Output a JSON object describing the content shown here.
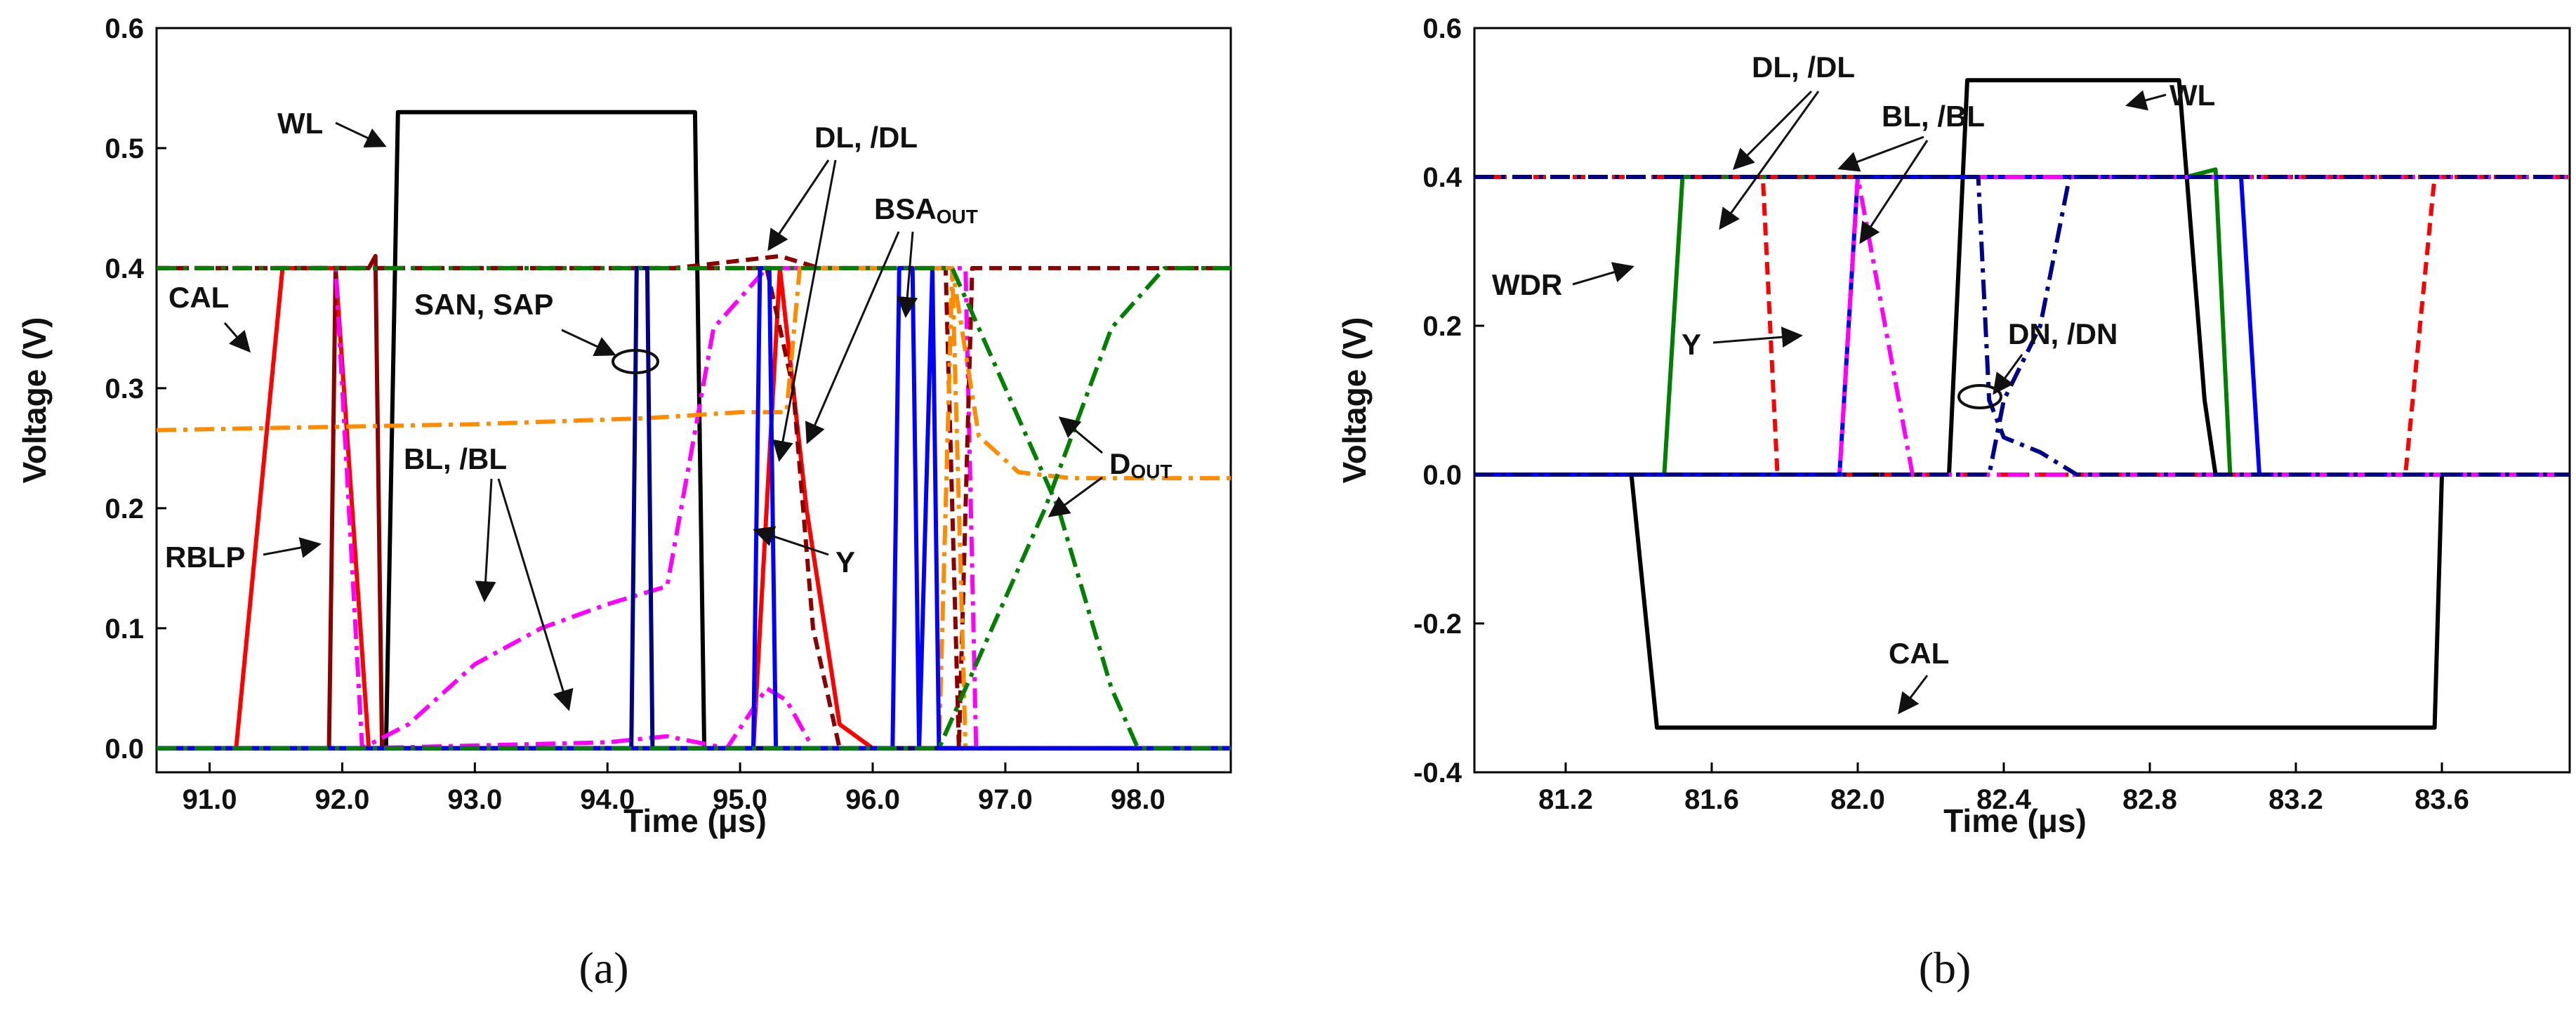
{
  "chart_data": [
    {
      "type": "line",
      "panel_label": "(a)",
      "xlabel": "Time (μs)",
      "ylabel": "Voltage (V)",
      "xlim": [
        90.6,
        98.7
      ],
      "ylim": [
        -0.02,
        0.6
      ],
      "xticks": [
        91.0,
        92.0,
        93.0,
        94.0,
        95.0,
        96.0,
        97.0,
        98.0
      ],
      "xtick_labels": [
        "91.0",
        "92.0",
        "93.0",
        "94.0",
        "95.0",
        "96.0",
        "97.0",
        "98.0"
      ],
      "yticks": [
        0.0,
        0.1,
        0.2,
        0.3,
        0.4,
        0.5,
        0.6
      ],
      "ytick_labels": [
        "0.0",
        "0.1",
        "0.2",
        "0.3",
        "0.4",
        "0.5",
        "0.6"
      ],
      "series": [
        {
          "name": "WL",
          "color": "#000000",
          "style": "solid",
          "x": [
            90.6,
            92.33,
            92.42,
            94.6,
            94.66,
            94.73,
            98.7
          ],
          "y": [
            0.0,
            0.0,
            0.53,
            0.53,
            0.53,
            0.0,
            0.0
          ]
        },
        {
          "name": "CAL",
          "color": "#ff0000",
          "style": "solid",
          "x": [
            90.6,
            91.2,
            91.55,
            91.95,
            92.2,
            95.1,
            95.3,
            95.5,
            95.75,
            96.0,
            98.7
          ],
          "y": [
            0.0,
            0.0,
            0.4,
            0.4,
            0.0,
            0.0,
            0.4,
            0.2,
            0.02,
            0.0,
            0.0
          ]
        },
        {
          "name": "RBLP",
          "color": "#8b0000",
          "style": "solid",
          "x": [
            90.6,
            91.9,
            91.95,
            92.2,
            92.25,
            92.3,
            98.7
          ],
          "y": [
            0.0,
            0.0,
            0.4,
            0.4,
            0.41,
            0.0,
            0.0
          ]
        },
        {
          "name": "BL",
          "color": "#ff00ff",
          "style": "dashdot",
          "x": [
            90.6,
            91.55,
            91.95,
            92.15,
            92.5,
            93.0,
            93.5,
            94.0,
            94.45,
            94.8,
            95.2,
            95.7,
            96.7,
            96.78,
            98.7
          ],
          "y": [
            0.4,
            0.4,
            0.4,
            0.0,
            0.02,
            0.07,
            0.1,
            0.12,
            0.135,
            0.35,
            0.4,
            0.4,
            0.4,
            0.0,
            0.0
          ]
        },
        {
          "name": "/BL",
          "color": "#ff00ff",
          "style": "dashdot",
          "x": [
            90.6,
            92.15,
            94.0,
            94.45,
            94.9,
            95.2,
            95.35,
            95.55,
            98.7
          ],
          "y": [
            0.0,
            0.0,
            0.005,
            0.01,
            0.0,
            0.05,
            0.04,
            0.0,
            0.0
          ]
        },
        {
          "name": "DL",
          "color": "#8b0000",
          "style": "dash",
          "x": [
            90.6,
            94.5,
            95.3,
            95.6,
            95.9,
            96.55,
            96.65,
            96.75,
            98.7
          ],
          "y": [
            0.4,
            0.4,
            0.41,
            0.4,
            0.4,
            0.4,
            0.0,
            0.4,
            0.4
          ]
        },
        {
          "name": "/DL",
          "color": "#8b0000",
          "style": "dash",
          "x": [
            90.6,
            95.2,
            95.4,
            95.55,
            95.75,
            98.7
          ],
          "y": [
            0.4,
            0.4,
            0.3,
            0.1,
            0.0,
            0.0
          ]
        },
        {
          "name": "BSA_OUT",
          "color": "#ff8c00",
          "style": "dashdot",
          "x": [
            90.6,
            93.0,
            94.3,
            95.0,
            95.35,
            95.45,
            96.0,
            96.3,
            96.6,
            96.7,
            98.7
          ],
          "y": [
            0.265,
            0.27,
            0.275,
            0.28,
            0.28,
            0.4,
            0.4,
            0.4,
            0.4,
            0.0,
            0.0
          ]
        },
        {
          "name": "/BSA_OUT",
          "color": "#ff8c00",
          "style": "dashdot",
          "x": [
            90.6,
            95.4,
            95.5,
            96.5,
            96.6,
            96.8,
            97.1,
            97.5,
            98.0,
            98.7
          ],
          "y": [
            0.0,
            0.0,
            0.0,
            0.0,
            0.4,
            0.26,
            0.23,
            0.225,
            0.225,
            0.225
          ]
        },
        {
          "name": "SAN, SAP",
          "color": "#00008b",
          "style": "solid",
          "x": [
            90.6,
            94.18,
            94.22,
            94.3,
            94.34,
            98.7
          ],
          "y": [
            0.0,
            0.0,
            0.4,
            0.4,
            0.0,
            0.0
          ]
        },
        {
          "name": "Y",
          "color": "#0000ff",
          "style": "solid",
          "x": [
            90.6,
            95.1,
            95.15,
            95.22,
            95.27,
            96.15,
            96.2,
            96.3,
            96.35,
            96.45,
            96.5,
            98.7
          ],
          "y": [
            0.0,
            0.0,
            0.4,
            0.4,
            0.0,
            0.0,
            0.4,
            0.4,
            0.0,
            0.4,
            0.0,
            0.0
          ]
        },
        {
          "name": "D_OUT",
          "color": "#008000",
          "style": "dashdot",
          "x": [
            90.6,
            96.6,
            97.0,
            97.4,
            97.8,
            98.0,
            98.7
          ],
          "y": [
            0.4,
            0.4,
            0.3,
            0.2,
            0.05,
            0.0,
            0.0
          ]
        },
        {
          "name": "/D_OUT",
          "color": "#008000",
          "style": "dashdot",
          "x": [
            90.6,
            96.5,
            96.9,
            97.3,
            97.8,
            98.2,
            98.7
          ],
          "y": [
            0.0,
            0.0,
            0.1,
            0.2,
            0.35,
            0.4,
            0.4
          ]
        }
      ],
      "annotations": [
        {
          "text": "WL"
        },
        {
          "text": "CAL"
        },
        {
          "text": "RBLP"
        },
        {
          "text": "SAN, SAP"
        },
        {
          "text": "BL, /BL"
        },
        {
          "text": "DL, /DL"
        },
        {
          "text": "BSA",
          "subscript": "OUT"
        },
        {
          "text": "D",
          "subscript": "OUT"
        },
        {
          "text": "Y"
        }
      ]
    },
    {
      "type": "line",
      "panel_label": "(b)",
      "xlabel": "Time (μs)",
      "ylabel": "Voltage (V)",
      "xlim": [
        80.95,
        83.95
      ],
      "ylim": [
        -0.4,
        0.6
      ],
      "xticks": [
        81.2,
        81.6,
        82.0,
        82.4,
        82.8,
        83.2,
        83.6
      ],
      "xtick_labels": [
        "81.2",
        "81.6",
        "82.0",
        "82.4",
        "82.8",
        "83.2",
        "83.6"
      ],
      "yticks": [
        -0.4,
        -0.2,
        0.0,
        0.2,
        0.4,
        0.6
      ],
      "ytick_labels": [
        "-0.4",
        "-0.2",
        "0.0",
        "0.2",
        "0.4",
        "0.6"
      ],
      "series": [
        {
          "name": "WL",
          "color": "#000000",
          "style": "solid",
          "x": [
            80.95,
            82.25,
            82.3,
            82.88,
            82.95,
            82.98,
            83.95
          ],
          "y": [
            0.0,
            0.0,
            0.53,
            0.53,
            0.1,
            0.0,
            0.0
          ]
        },
        {
          "name": "CAL",
          "color": "#000000",
          "style": "solid",
          "x": [
            80.95,
            81.38,
            81.45,
            82.0,
            83.58,
            83.6,
            83.95
          ],
          "y": [
            0.0,
            0.0,
            -0.34,
            -0.34,
            -0.34,
            0.0,
            0.0
          ]
        },
        {
          "name": "WDR",
          "color": "#008000",
          "style": "solid",
          "x": [
            80.95,
            81.47,
            81.52,
            82.9,
            82.98,
            83.02,
            83.95
          ],
          "y": [
            0.0,
            0.0,
            0.4,
            0.4,
            0.41,
            0.0,
            0.0
          ]
        },
        {
          "name": "DL",
          "color": "#ff0000",
          "style": "dash",
          "x": [
            80.95,
            81.74,
            81.78,
            83.5,
            83.58,
            83.95
          ],
          "y": [
            0.4,
            0.4,
            0.0,
            0.0,
            0.4,
            0.4
          ]
        },
        {
          "name": "/DL",
          "color": "#ff0000",
          "style": "dash",
          "x": [
            80.95,
            83.95
          ],
          "y": [
            0.4,
            0.4
          ]
        },
        {
          "name": "Y",
          "color": "#0000ff",
          "style": "solid",
          "x": [
            80.95,
            81.95,
            82.0,
            83.05,
            83.1,
            83.95
          ],
          "y": [
            0.0,
            0.0,
            0.4,
            0.4,
            0.0,
            0.0
          ]
        },
        {
          "name": "BL",
          "color": "#ff00ff",
          "style": "dashdot",
          "x": [
            80.95,
            81.95,
            82.0,
            82.15,
            83.95
          ],
          "y": [
            0.0,
            0.0,
            0.4,
            0.0,
            0.0
          ]
        },
        {
          "name": "/BL",
          "color": "#ff00ff",
          "style": "dashdot",
          "x": [
            80.95,
            83.45,
            83.55,
            83.95
          ],
          "y": [
            0.4,
            0.4,
            0.4,
            0.4
          ]
        },
        {
          "name": "DN",
          "color": "#00008b",
          "style": "dashdot",
          "x": [
            80.95,
            82.36,
            82.4,
            82.5,
            82.58,
            83.95
          ],
          "y": [
            0.0,
            0.0,
            0.1,
            0.2,
            0.4,
            0.4
          ]
        },
        {
          "name": "/DN",
          "color": "#00008b",
          "style": "dashdot",
          "x": [
            80.95,
            82.33,
            82.36,
            82.4,
            82.5,
            82.6,
            83.95
          ],
          "y": [
            0.4,
            0.4,
            0.1,
            0.05,
            0.03,
            0.0,
            0.0
          ]
        }
      ],
      "annotations": [
        {
          "text": "DL, /DL"
        },
        {
          "text": "BL, /BL"
        },
        {
          "text": "WL"
        },
        {
          "text": "WDR"
        },
        {
          "text": "Y"
        },
        {
          "text": "DN, /DN"
        },
        {
          "text": "CAL"
        }
      ]
    }
  ]
}
